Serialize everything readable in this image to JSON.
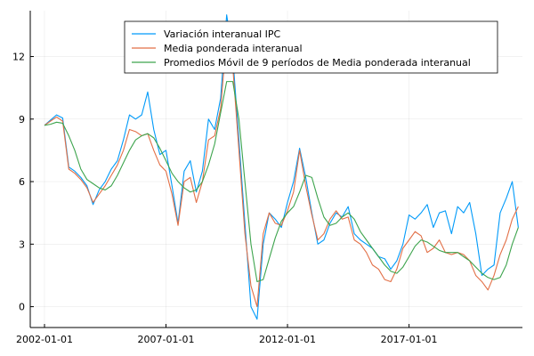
{
  "chart_data": {
    "type": "line",
    "title": "",
    "xlabel": "",
    "ylabel": "",
    "xlim": [
      "2001-06-01",
      "2021-09-01"
    ],
    "ylim": [
      -1.0,
      14.2
    ],
    "grid": true,
    "legend_position": "top-right",
    "x_ticks": [
      {
        "value": "2002-01-01",
        "label": "2002-01-01"
      },
      {
        "value": "2007-01-01",
        "label": "2007-01-01"
      },
      {
        "value": "2012-01-01",
        "label": "2012-01-01"
      },
      {
        "value": "2017-01-01",
        "label": "2017-01-01"
      }
    ],
    "y_ticks": [
      {
        "value": 0,
        "label": "0"
      },
      {
        "value": 3,
        "label": "3"
      },
      {
        "value": 6,
        "label": "6"
      },
      {
        "value": 9,
        "label": "9"
      },
      {
        "value": 12,
        "label": "12"
      }
    ],
    "series": [
      {
        "name": "Variación interanual IPC",
        "color": "#009af9",
        "points": [
          [
            "2002-01-01",
            8.7
          ],
          [
            "2002-04-01",
            8.95
          ],
          [
            "2002-07-01",
            9.2
          ],
          [
            "2002-10-01",
            9.05
          ],
          [
            "2003-01-01",
            6.7
          ],
          [
            "2003-04-01",
            6.5
          ],
          [
            "2003-07-01",
            6.2
          ],
          [
            "2003-10-01",
            5.8
          ],
          [
            "2004-01-01",
            4.9
          ],
          [
            "2004-04-01",
            5.6
          ],
          [
            "2004-07-01",
            6.0
          ],
          [
            "2004-10-01",
            6.6
          ],
          [
            "2005-01-01",
            7.0
          ],
          [
            "2005-04-01",
            8.0
          ],
          [
            "2005-07-01",
            9.2
          ],
          [
            "2005-10-01",
            9.0
          ],
          [
            "2006-01-01",
            9.2
          ],
          [
            "2006-04-01",
            10.3
          ],
          [
            "2006-07-01",
            8.5
          ],
          [
            "2006-10-01",
            7.3
          ],
          [
            "2007-01-01",
            7.5
          ],
          [
            "2007-04-01",
            5.8
          ],
          [
            "2007-07-01",
            4.0
          ],
          [
            "2007-10-01",
            6.5
          ],
          [
            "2008-01-01",
            7.0
          ],
          [
            "2008-04-01",
            5.5
          ],
          [
            "2008-07-01",
            6.5
          ],
          [
            "2008-10-01",
            9.0
          ],
          [
            "2009-01-01",
            8.5
          ],
          [
            "2009-04-01",
            10.0
          ],
          [
            "2009-07-01",
            14.0
          ],
          [
            "2009-10-01",
            12.0
          ],
          [
            "2010-01-01",
            8.0
          ],
          [
            "2010-04-01",
            4.0
          ],
          [
            "2010-07-01",
            0.0
          ],
          [
            "2010-10-01",
            -0.6
          ],
          [
            "2011-01-01",
            3.0
          ],
          [
            "2011-04-01",
            4.5
          ],
          [
            "2011-07-01",
            4.2
          ],
          [
            "2011-10-01",
            3.8
          ],
          [
            "2012-01-01",
            5.0
          ],
          [
            "2012-04-01",
            6.0
          ],
          [
            "2012-07-01",
            7.6
          ],
          [
            "2012-10-01",
            6.2
          ],
          [
            "2013-01-01",
            4.5
          ],
          [
            "2013-04-01",
            3.0
          ],
          [
            "2013-07-01",
            3.2
          ],
          [
            "2013-10-01",
            4.0
          ],
          [
            "2014-01-01",
            4.5
          ],
          [
            "2014-04-01",
            4.3
          ],
          [
            "2014-07-01",
            4.8
          ],
          [
            "2014-10-01",
            3.5
          ],
          [
            "2015-01-01",
            3.2
          ],
          [
            "2015-04-01",
            3.0
          ],
          [
            "2015-07-01",
            2.8
          ],
          [
            "2015-10-01",
            2.4
          ],
          [
            "2016-01-01",
            2.3
          ],
          [
            "2016-04-01",
            1.8
          ],
          [
            "2016-07-01",
            2.2
          ],
          [
            "2016-10-01",
            3.0
          ],
          [
            "2017-01-01",
            4.4
          ],
          [
            "2017-04-01",
            4.2
          ],
          [
            "2017-07-01",
            4.5
          ],
          [
            "2017-10-01",
            4.9
          ],
          [
            "2018-01-01",
            3.8
          ],
          [
            "2018-04-01",
            4.5
          ],
          [
            "2018-07-01",
            4.6
          ],
          [
            "2018-10-01",
            3.5
          ],
          [
            "2019-01-01",
            4.8
          ],
          [
            "2019-04-01",
            4.5
          ],
          [
            "2019-07-01",
            5.0
          ],
          [
            "2019-10-01",
            3.5
          ],
          [
            "2020-01-01",
            1.5
          ],
          [
            "2020-04-01",
            1.8
          ],
          [
            "2020-07-01",
            2.0
          ],
          [
            "2020-10-01",
            4.5
          ],
          [
            "2021-01-01",
            5.2
          ],
          [
            "2021-04-01",
            6.0
          ],
          [
            "2021-07-01",
            3.8
          ]
        ]
      },
      {
        "name": "Media ponderada interanual",
        "color": "#e26f46",
        "points": [
          [
            "2002-01-01",
            8.7
          ],
          [
            "2002-04-01",
            8.9
          ],
          [
            "2002-07-01",
            9.1
          ],
          [
            "2002-10-01",
            8.9
          ],
          [
            "2003-01-01",
            6.6
          ],
          [
            "2003-04-01",
            6.4
          ],
          [
            "2003-07-01",
            6.1
          ],
          [
            "2003-10-01",
            5.7
          ],
          [
            "2004-01-01",
            5.0
          ],
          [
            "2004-04-01",
            5.4
          ],
          [
            "2004-07-01",
            5.8
          ],
          [
            "2004-10-01",
            6.3
          ],
          [
            "2005-01-01",
            6.8
          ],
          [
            "2005-04-01",
            7.5
          ],
          [
            "2005-07-01",
            8.5
          ],
          [
            "2005-10-01",
            8.4
          ],
          [
            "2006-01-01",
            8.2
          ],
          [
            "2006-04-01",
            8.3
          ],
          [
            "2006-07-01",
            7.5
          ],
          [
            "2006-10-01",
            6.8
          ],
          [
            "2007-01-01",
            6.5
          ],
          [
            "2007-04-01",
            5.4
          ],
          [
            "2007-07-01",
            3.9
          ],
          [
            "2007-10-01",
            6.0
          ],
          [
            "2008-01-01",
            6.2
          ],
          [
            "2008-04-01",
            5.0
          ],
          [
            "2008-07-01",
            6.0
          ],
          [
            "2008-10-01",
            8.0
          ],
          [
            "2009-01-01",
            8.2
          ],
          [
            "2009-04-01",
            9.5
          ],
          [
            "2009-07-01",
            13.0
          ],
          [
            "2009-10-01",
            11.5
          ],
          [
            "2010-01-01",
            7.5
          ],
          [
            "2010-04-01",
            3.5
          ],
          [
            "2010-07-01",
            1.0
          ],
          [
            "2010-10-01",
            0.0
          ],
          [
            "2011-01-01",
            3.5
          ],
          [
            "2011-04-01",
            4.5
          ],
          [
            "2011-07-01",
            4.0
          ],
          [
            "2011-10-01",
            3.9
          ],
          [
            "2012-01-01",
            4.6
          ],
          [
            "2012-04-01",
            5.5
          ],
          [
            "2012-07-01",
            7.5
          ],
          [
            "2012-10-01",
            5.8
          ],
          [
            "2013-01-01",
            4.4
          ],
          [
            "2013-04-01",
            3.2
          ],
          [
            "2013-07-01",
            3.5
          ],
          [
            "2013-10-01",
            4.2
          ],
          [
            "2014-01-01",
            4.6
          ],
          [
            "2014-04-01",
            4.2
          ],
          [
            "2014-07-01",
            4.3
          ],
          [
            "2014-10-01",
            3.2
          ],
          [
            "2015-01-01",
            3.0
          ],
          [
            "2015-04-01",
            2.6
          ],
          [
            "2015-07-01",
            2.0
          ],
          [
            "2015-10-01",
            1.8
          ],
          [
            "2016-01-01",
            1.3
          ],
          [
            "2016-04-01",
            1.2
          ],
          [
            "2016-07-01",
            1.8
          ],
          [
            "2016-10-01",
            2.8
          ],
          [
            "2017-01-01",
            3.2
          ],
          [
            "2017-04-01",
            3.6
          ],
          [
            "2017-07-01",
            3.4
          ],
          [
            "2017-10-01",
            2.6
          ],
          [
            "2018-01-01",
            2.8
          ],
          [
            "2018-04-01",
            3.2
          ],
          [
            "2018-07-01",
            2.6
          ],
          [
            "2018-10-01",
            2.5
          ],
          [
            "2019-01-01",
            2.6
          ],
          [
            "2019-04-01",
            2.5
          ],
          [
            "2019-07-01",
            2.2
          ],
          [
            "2019-10-01",
            1.5
          ],
          [
            "2020-01-01",
            1.2
          ],
          [
            "2020-04-01",
            0.8
          ],
          [
            "2020-07-01",
            1.5
          ],
          [
            "2020-10-01",
            2.5
          ],
          [
            "2021-01-01",
            3.2
          ],
          [
            "2021-04-01",
            4.2
          ],
          [
            "2021-07-01",
            4.8
          ]
        ]
      },
      {
        "name": "Promedios Móvil de 9 períodos de Media ponderada interanual",
        "color": "#3da44d",
        "points": [
          [
            "2002-01-01",
            8.7
          ],
          [
            "2002-04-01",
            8.75
          ],
          [
            "2002-07-01",
            8.85
          ],
          [
            "2002-10-01",
            8.8
          ],
          [
            "2003-01-01",
            8.2
          ],
          [
            "2003-04-01",
            7.5
          ],
          [
            "2003-07-01",
            6.6
          ],
          [
            "2003-10-01",
            6.1
          ],
          [
            "2004-01-01",
            5.9
          ],
          [
            "2004-04-01",
            5.7
          ],
          [
            "2004-07-01",
            5.6
          ],
          [
            "2004-10-01",
            5.8
          ],
          [
            "2005-01-01",
            6.3
          ],
          [
            "2005-04-01",
            6.9
          ],
          [
            "2005-07-01",
            7.5
          ],
          [
            "2005-10-01",
            8.0
          ],
          [
            "2006-01-01",
            8.2
          ],
          [
            "2006-04-01",
            8.3
          ],
          [
            "2006-07-01",
            8.1
          ],
          [
            "2006-10-01",
            7.6
          ],
          [
            "2007-01-01",
            7.0
          ],
          [
            "2007-04-01",
            6.4
          ],
          [
            "2007-07-01",
            6.0
          ],
          [
            "2007-10-01",
            5.7
          ],
          [
            "2008-01-01",
            5.5
          ],
          [
            "2008-04-01",
            5.6
          ],
          [
            "2008-07-01",
            6.0
          ],
          [
            "2008-10-01",
            6.8
          ],
          [
            "2009-01-01",
            7.8
          ],
          [
            "2009-04-01",
            9.3
          ],
          [
            "2009-07-01",
            10.8
          ],
          [
            "2009-10-01",
            10.8
          ],
          [
            "2010-01-01",
            9.0
          ],
          [
            "2010-04-01",
            6.0
          ],
          [
            "2010-07-01",
            3.0
          ],
          [
            "2010-10-01",
            1.2
          ],
          [
            "2011-01-01",
            1.3
          ],
          [
            "2011-04-01",
            2.3
          ],
          [
            "2011-07-01",
            3.3
          ],
          [
            "2011-10-01",
            4.1
          ],
          [
            "2012-01-01",
            4.5
          ],
          [
            "2012-04-01",
            4.8
          ],
          [
            "2012-07-01",
            5.5
          ],
          [
            "2012-10-01",
            6.3
          ],
          [
            "2013-01-01",
            6.2
          ],
          [
            "2013-04-01",
            5.2
          ],
          [
            "2013-07-01",
            4.3
          ],
          [
            "2013-10-01",
            3.9
          ],
          [
            "2014-01-01",
            4.0
          ],
          [
            "2014-04-01",
            4.3
          ],
          [
            "2014-07-01",
            4.5
          ],
          [
            "2014-10-01",
            4.2
          ],
          [
            "2015-01-01",
            3.6
          ],
          [
            "2015-04-01",
            3.2
          ],
          [
            "2015-07-01",
            2.8
          ],
          [
            "2015-10-01",
            2.4
          ],
          [
            "2016-01-01",
            2.0
          ],
          [
            "2016-04-01",
            1.7
          ],
          [
            "2016-07-01",
            1.6
          ],
          [
            "2016-10-01",
            1.9
          ],
          [
            "2017-01-01",
            2.4
          ],
          [
            "2017-04-01",
            2.9
          ],
          [
            "2017-07-01",
            3.2
          ],
          [
            "2017-10-01",
            3.1
          ],
          [
            "2018-01-01",
            2.9
          ],
          [
            "2018-04-01",
            2.7
          ],
          [
            "2018-07-01",
            2.6
          ],
          [
            "2018-10-01",
            2.6
          ],
          [
            "2019-01-01",
            2.6
          ],
          [
            "2019-04-01",
            2.4
          ],
          [
            "2019-07-01",
            2.2
          ],
          [
            "2019-10-01",
            1.9
          ],
          [
            "2020-01-01",
            1.6
          ],
          [
            "2020-04-01",
            1.4
          ],
          [
            "2020-07-01",
            1.3
          ],
          [
            "2020-10-01",
            1.4
          ],
          [
            "2021-01-01",
            2.0
          ],
          [
            "2021-04-01",
            3.0
          ],
          [
            "2021-07-01",
            3.8
          ]
        ]
      }
    ]
  }
}
